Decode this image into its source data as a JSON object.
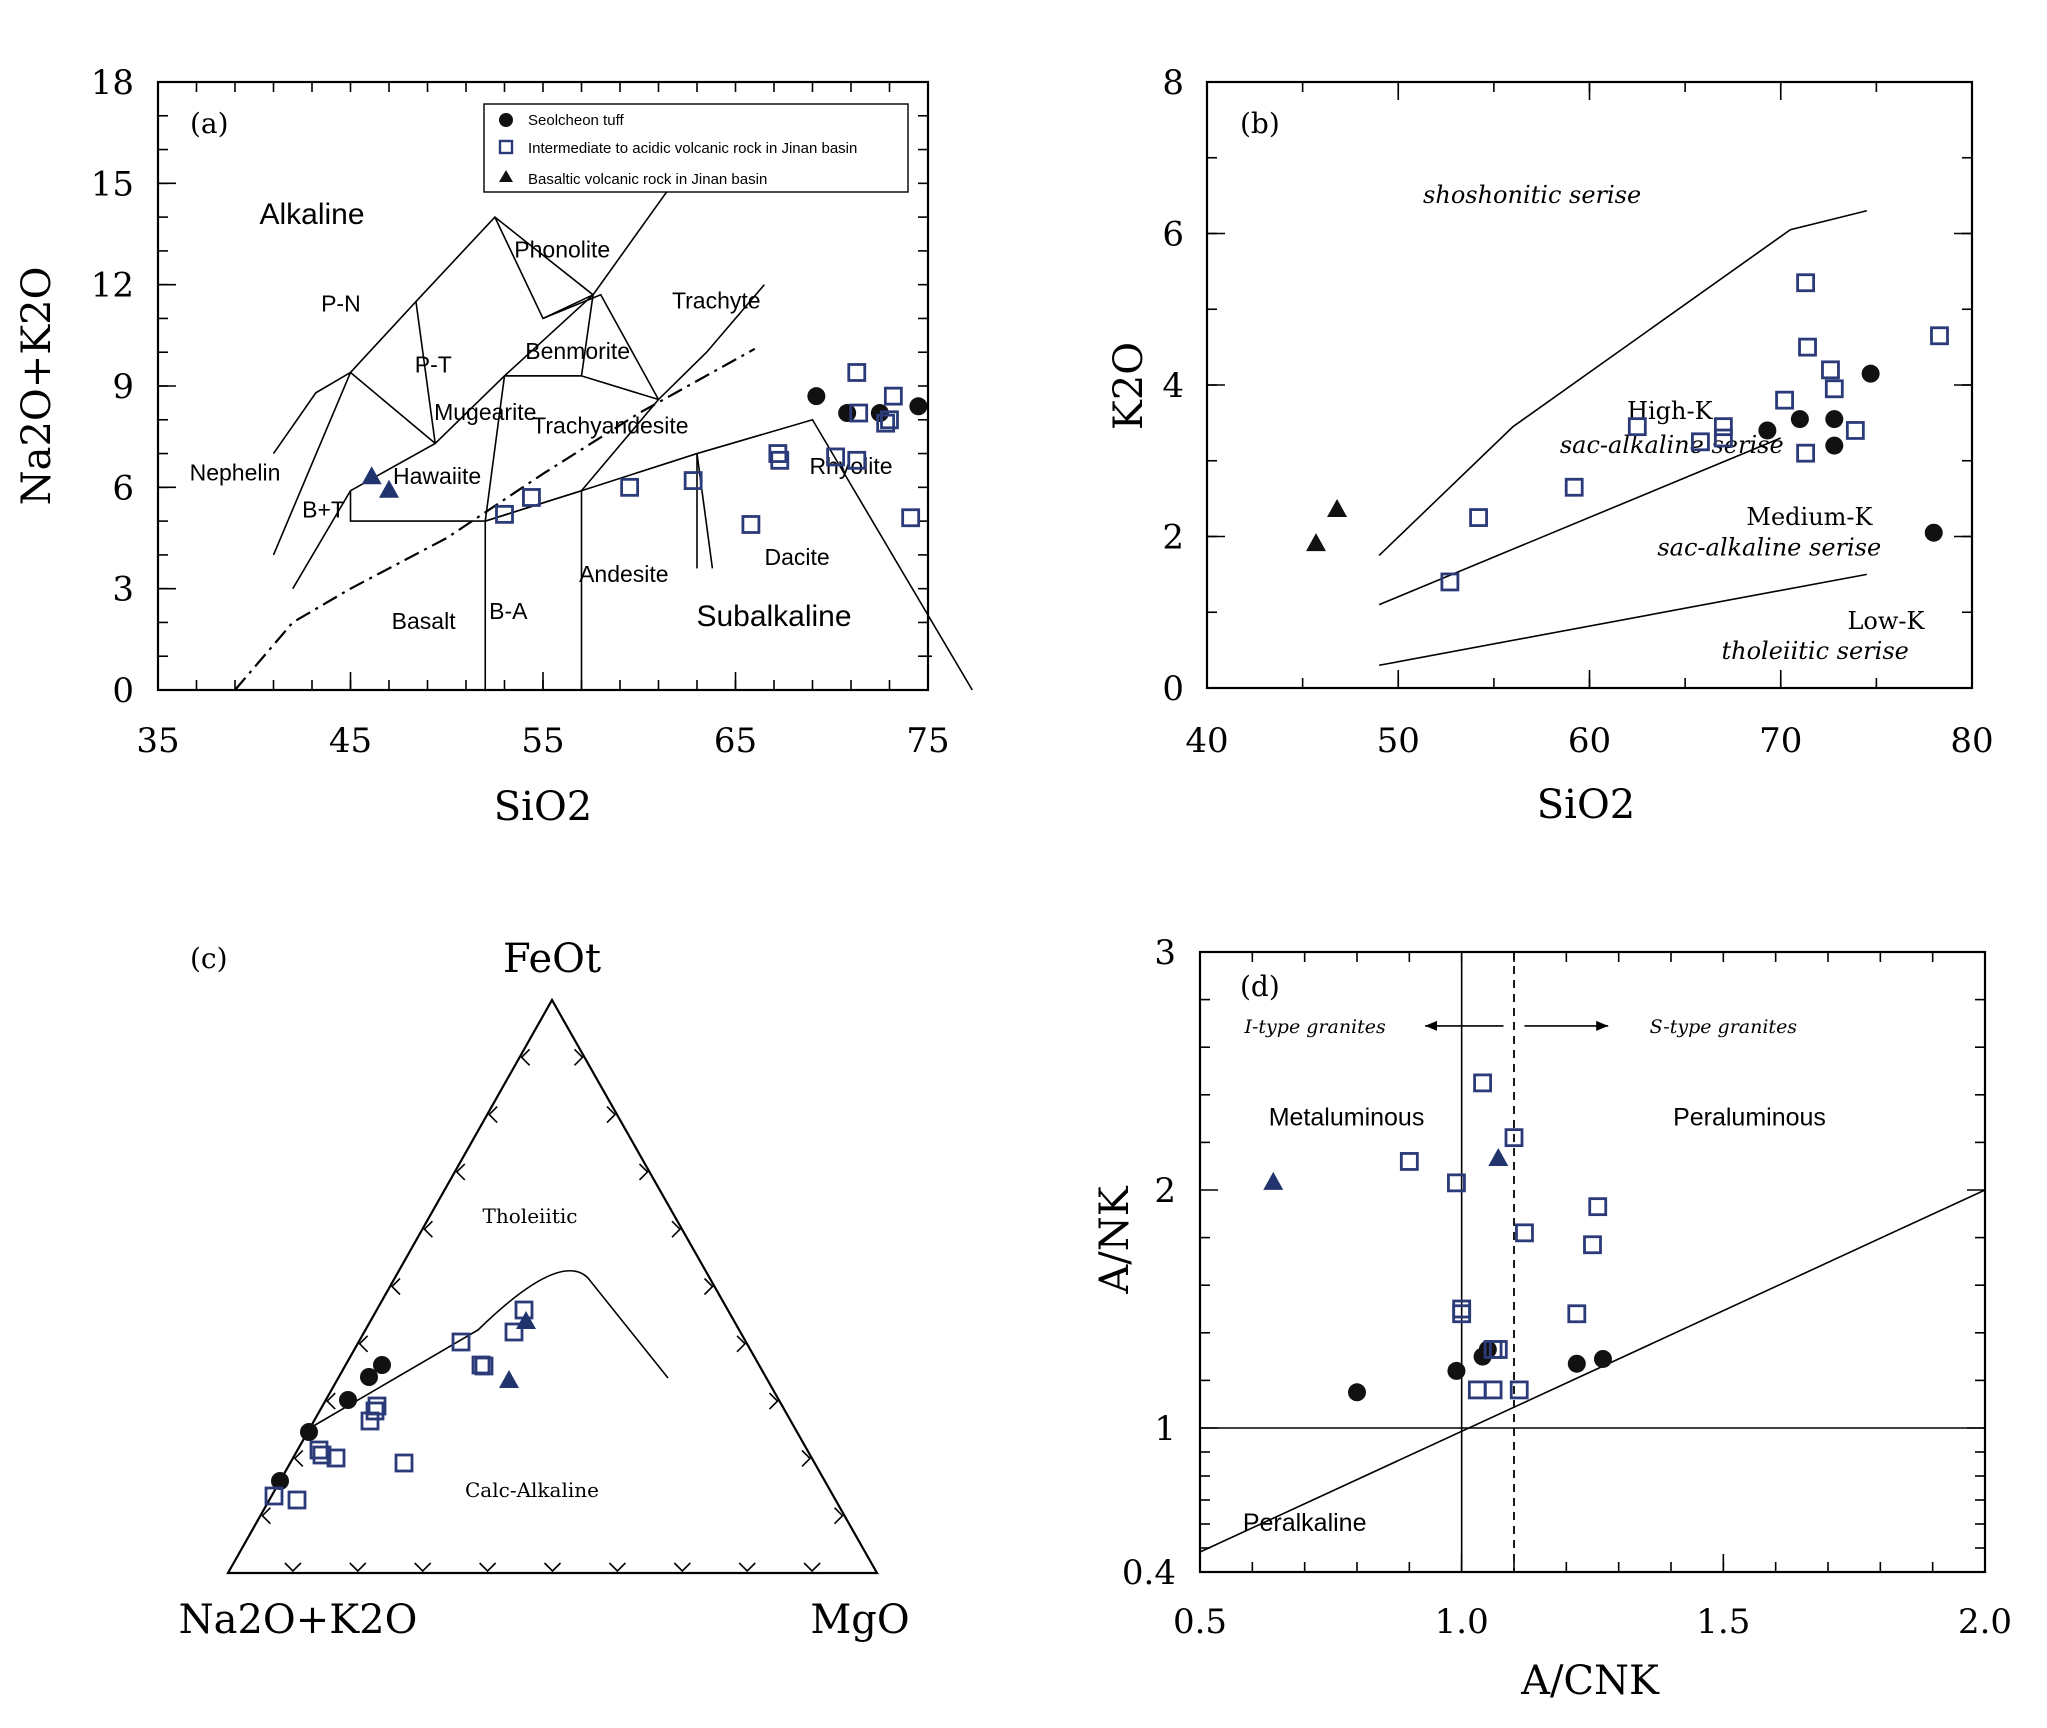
{
  "colors": {
    "circle": "#111111",
    "square": "#2b3a78",
    "triangle_a": "#22346e",
    "triangle_b": "#111111"
  },
  "chart_data": [
    {
      "panel": "a",
      "type": "scatter",
      "letter": "(a)",
      "xlabel": "SiO2",
      "ylabel": "Na2O+K2O",
      "xlim": [
        35,
        75
      ],
      "ylim": [
        0,
        18
      ],
      "xticks": [
        35,
        45,
        55,
        65,
        75
      ],
      "yticks": [
        0,
        3,
        6,
        9,
        12,
        15,
        18
      ],
      "legend": [
        {
          "label": "Seolcheon tuff",
          "marker": "circle"
        },
        {
          "label": "Intermediate to acidic volcanic rock in Jinan basin",
          "marker": "square"
        },
        {
          "label": "Basaltic volcanic rock in Jinan basin",
          "marker": "triangle"
        }
      ],
      "fields": [
        {
          "label": "Alkaline",
          "x": 43,
          "y": 13.8,
          "size": "big"
        },
        {
          "label": "Subalkaline",
          "x": 67,
          "y": 1.9,
          "size": "big"
        },
        {
          "label": "Phonolite",
          "x": 56,
          "y": 12.8
        },
        {
          "label": "P-N",
          "x": 44.5,
          "y": 11.2
        },
        {
          "label": "Trachyte",
          "x": 64,
          "y": 11.3
        },
        {
          "label": "P-T",
          "x": 49.3,
          "y": 9.4
        },
        {
          "label": "Benmorite",
          "x": 56.8,
          "y": 9.8
        },
        {
          "label": "Mugearite",
          "x": 52,
          "y": 8.0
        },
        {
          "label": "Trachyandesite",
          "x": 58.5,
          "y": 7.6
        },
        {
          "label": "Nephelin",
          "x": 39,
          "y": 6.2
        },
        {
          "label": "Hawaiite",
          "x": 49.5,
          "y": 6.1
        },
        {
          "label": "Rhyolite",
          "x": 71,
          "y": 6.4
        },
        {
          "label": "B+T",
          "x": 43.6,
          "y": 5.1
        },
        {
          "label": "Dacite",
          "x": 68.2,
          "y": 3.7
        },
        {
          "label": "Andesite",
          "x": 59.2,
          "y": 3.2
        },
        {
          "label": "Basalt",
          "x": 48.8,
          "y": 1.8
        },
        {
          "label": "B-A",
          "x": 53.2,
          "y": 2.1
        }
      ],
      "series": [
        {
          "marker": "circle",
          "color": "#111111",
          "points": [
            [
              69.2,
              8.7
            ],
            [
              70.8,
              8.2
            ],
            [
              72.5,
              8.2
            ],
            [
              74.5,
              8.4
            ]
          ]
        },
        {
          "marker": "square",
          "color": "#2b3a78",
          "points": [
            [
              71.3,
              9.4
            ],
            [
              73.2,
              8.7
            ],
            [
              71.4,
              8.2
            ],
            [
              72.8,
              7.9
            ],
            [
              73.0,
              8.0
            ],
            [
              67.2,
              7.0
            ],
            [
              67.3,
              6.8
            ],
            [
              70.2,
              6.9
            ],
            [
              71.3,
              6.8
            ],
            [
              62.8,
              6.2
            ],
            [
              59.5,
              6.0
            ],
            [
              54.4,
              5.7
            ],
            [
              53.0,
              5.2
            ],
            [
              65.8,
              4.9
            ],
            [
              74.1,
              5.1
            ]
          ]
        },
        {
          "marker": "triangle",
          "color": "#22346e",
          "points": [
            [
              46.1,
              6.3
            ],
            [
              47.0,
              5.9
            ]
          ]
        }
      ]
    },
    {
      "panel": "b",
      "type": "scatter",
      "letter": "(b)",
      "xlabel": "SiO2",
      "ylabel": "K2O",
      "xlim": [
        40,
        80
      ],
      "ylim": [
        0,
        8
      ],
      "xticks": [
        40,
        50,
        60,
        70,
        80
      ],
      "yticks": [
        0,
        2,
        4,
        6,
        8
      ],
      "fields": [
        {
          "label": "shoshonitic serise",
          "x": 57,
          "y": 6.4,
          "italic": true
        },
        {
          "label": "High-K",
          "x": 64.2,
          "y": 3.55,
          "italic": false
        },
        {
          "label": "sac-alkaline serise",
          "x": 64.3,
          "y": 3.1,
          "italic": true
        },
        {
          "label": "Medium-K",
          "x": 71.5,
          "y": 2.15,
          "italic": false
        },
        {
          "label": "sac-alkaline serise",
          "x": 69.4,
          "y": 1.75,
          "italic": true
        },
        {
          "label": "Low-K",
          "x": 75.5,
          "y": 0.78,
          "italic": false
        },
        {
          "label": "tholeiitic serise",
          "x": 71.8,
          "y": 0.38,
          "italic": true
        }
      ],
      "series": [
        {
          "marker": "circle",
          "color": "#111111",
          "points": [
            [
              69.3,
              3.4
            ],
            [
              71.0,
              3.55
            ],
            [
              72.8,
              3.55
            ],
            [
              72.8,
              3.2
            ],
            [
              74.7,
              4.15
            ],
            [
              78.0,
              2.05
            ]
          ]
        },
        {
          "marker": "square",
          "color": "#2b3a78",
          "points": [
            [
              71.3,
              5.35
            ],
            [
              71.4,
              4.5
            ],
            [
              72.6,
              4.2
            ],
            [
              72.8,
              3.95
            ],
            [
              70.2,
              3.8
            ],
            [
              73.9,
              3.4
            ],
            [
              71.3,
              3.1
            ],
            [
              62.5,
              3.45
            ],
            [
              65.8,
              3.25
            ],
            [
              67.0,
              3.45
            ],
            [
              67.0,
              3.3
            ],
            [
              78.3,
              4.65
            ],
            [
              59.2,
              2.65
            ],
            [
              54.2,
              2.25
            ],
            [
              52.7,
              1.4
            ]
          ]
        },
        {
          "marker": "triangle",
          "color": "#111111",
          "points": [
            [
              45.7,
              1.9
            ],
            [
              46.8,
              2.35
            ]
          ]
        }
      ]
    },
    {
      "panel": "c",
      "type": "scatter",
      "letter": "(c)",
      "apex_top": "FeOt",
      "apex_left": "Na2O+K2O",
      "apex_right": "MgO",
      "fields": [
        {
          "label": "Tholeiitic",
          "x": 530,
          "y": 1223
        },
        {
          "label": "Calc-Alkaline",
          "x": 532,
          "y": 1497
        }
      ],
      "series": [
        {
          "marker": "circle",
          "color": "#111111",
          "points": [
            [
              280,
              1481
            ],
            [
              309,
              1432
            ],
            [
              348,
              1400
            ],
            [
              369,
              1377
            ],
            [
              382,
              1365
            ]
          ]
        },
        {
          "marker": "square",
          "color": "#2b3a78",
          "points": [
            [
              274,
              1496
            ],
            [
              297,
              1500
            ],
            [
              319,
              1450
            ],
            [
              322,
              1455
            ],
            [
              336,
              1458
            ],
            [
              370,
              1421
            ],
            [
              375,
              1411
            ],
            [
              377,
              1406
            ],
            [
              404,
              1463
            ],
            [
              461,
              1342
            ],
            [
              481,
              1365
            ],
            [
              484,
              1366
            ],
            [
              514,
              1332
            ],
            [
              524,
              1310
            ]
          ]
        },
        {
          "marker": "triangle",
          "color": "#22346e",
          "points": [
            [
              509,
              1381
            ],
            [
              526,
              1322
            ]
          ]
        }
      ]
    },
    {
      "panel": "d",
      "type": "scatter",
      "letter": "(d)",
      "xlabel": "A/CNK",
      "ylabel": "A/NK",
      "xlim": [
        0.5,
        2.0
      ],
      "ylim": [
        0.4,
        3
      ],
      "xticks": [
        "0.5",
        "1.0",
        "1.5",
        "2.0"
      ],
      "yticks": [
        "0.4",
        "1",
        "2",
        "3"
      ],
      "fields": [
        {
          "label": "Metaluminous",
          "x": 0.78,
          "y": 2.27,
          "kind": "sans"
        },
        {
          "label": "Peraluminous",
          "x": 1.55,
          "y": 2.27,
          "kind": "sans"
        },
        {
          "label": "Peralkaline",
          "x": 0.7,
          "y": 0.57,
          "kind": "sans"
        },
        {
          "label": "I-type granites",
          "x": 0.72,
          "y": 2.66,
          "kind": "italic"
        },
        {
          "label": "S-type granites",
          "x": 1.5,
          "y": 2.66,
          "kind": "italic"
        }
      ],
      "series": [
        {
          "marker": "circle",
          "color": "#111111",
          "points": [
            [
              0.8,
              1.15
            ],
            [
              0.99,
              1.24
            ],
            [
              1.04,
              1.3
            ],
            [
              1.05,
              1.33
            ],
            [
              1.22,
              1.27
            ],
            [
              1.27,
              1.29
            ]
          ]
        },
        {
          "marker": "square",
          "color": "#2b3a78",
          "points": [
            [
              1.04,
              2.45
            ],
            [
              1.1,
              2.22
            ],
            [
              0.9,
              2.12
            ],
            [
              0.99,
              2.03
            ],
            [
              1.12,
              1.82
            ],
            [
              1.26,
              1.93
            ],
            [
              1.25,
              1.77
            ],
            [
              1.0,
              1.5
            ],
            [
              1.0,
              1.48
            ],
            [
              1.22,
              1.48
            ],
            [
              1.06,
              1.33
            ],
            [
              1.07,
              1.33
            ],
            [
              1.03,
              1.16
            ],
            [
              1.06,
              1.16
            ],
            [
              1.11,
              1.16
            ]
          ]
        },
        {
          "marker": "triangle",
          "color": "#22346e",
          "points": [
            [
              0.64,
              2.03
            ],
            [
              1.07,
              2.13
            ]
          ]
        }
      ]
    }
  ]
}
